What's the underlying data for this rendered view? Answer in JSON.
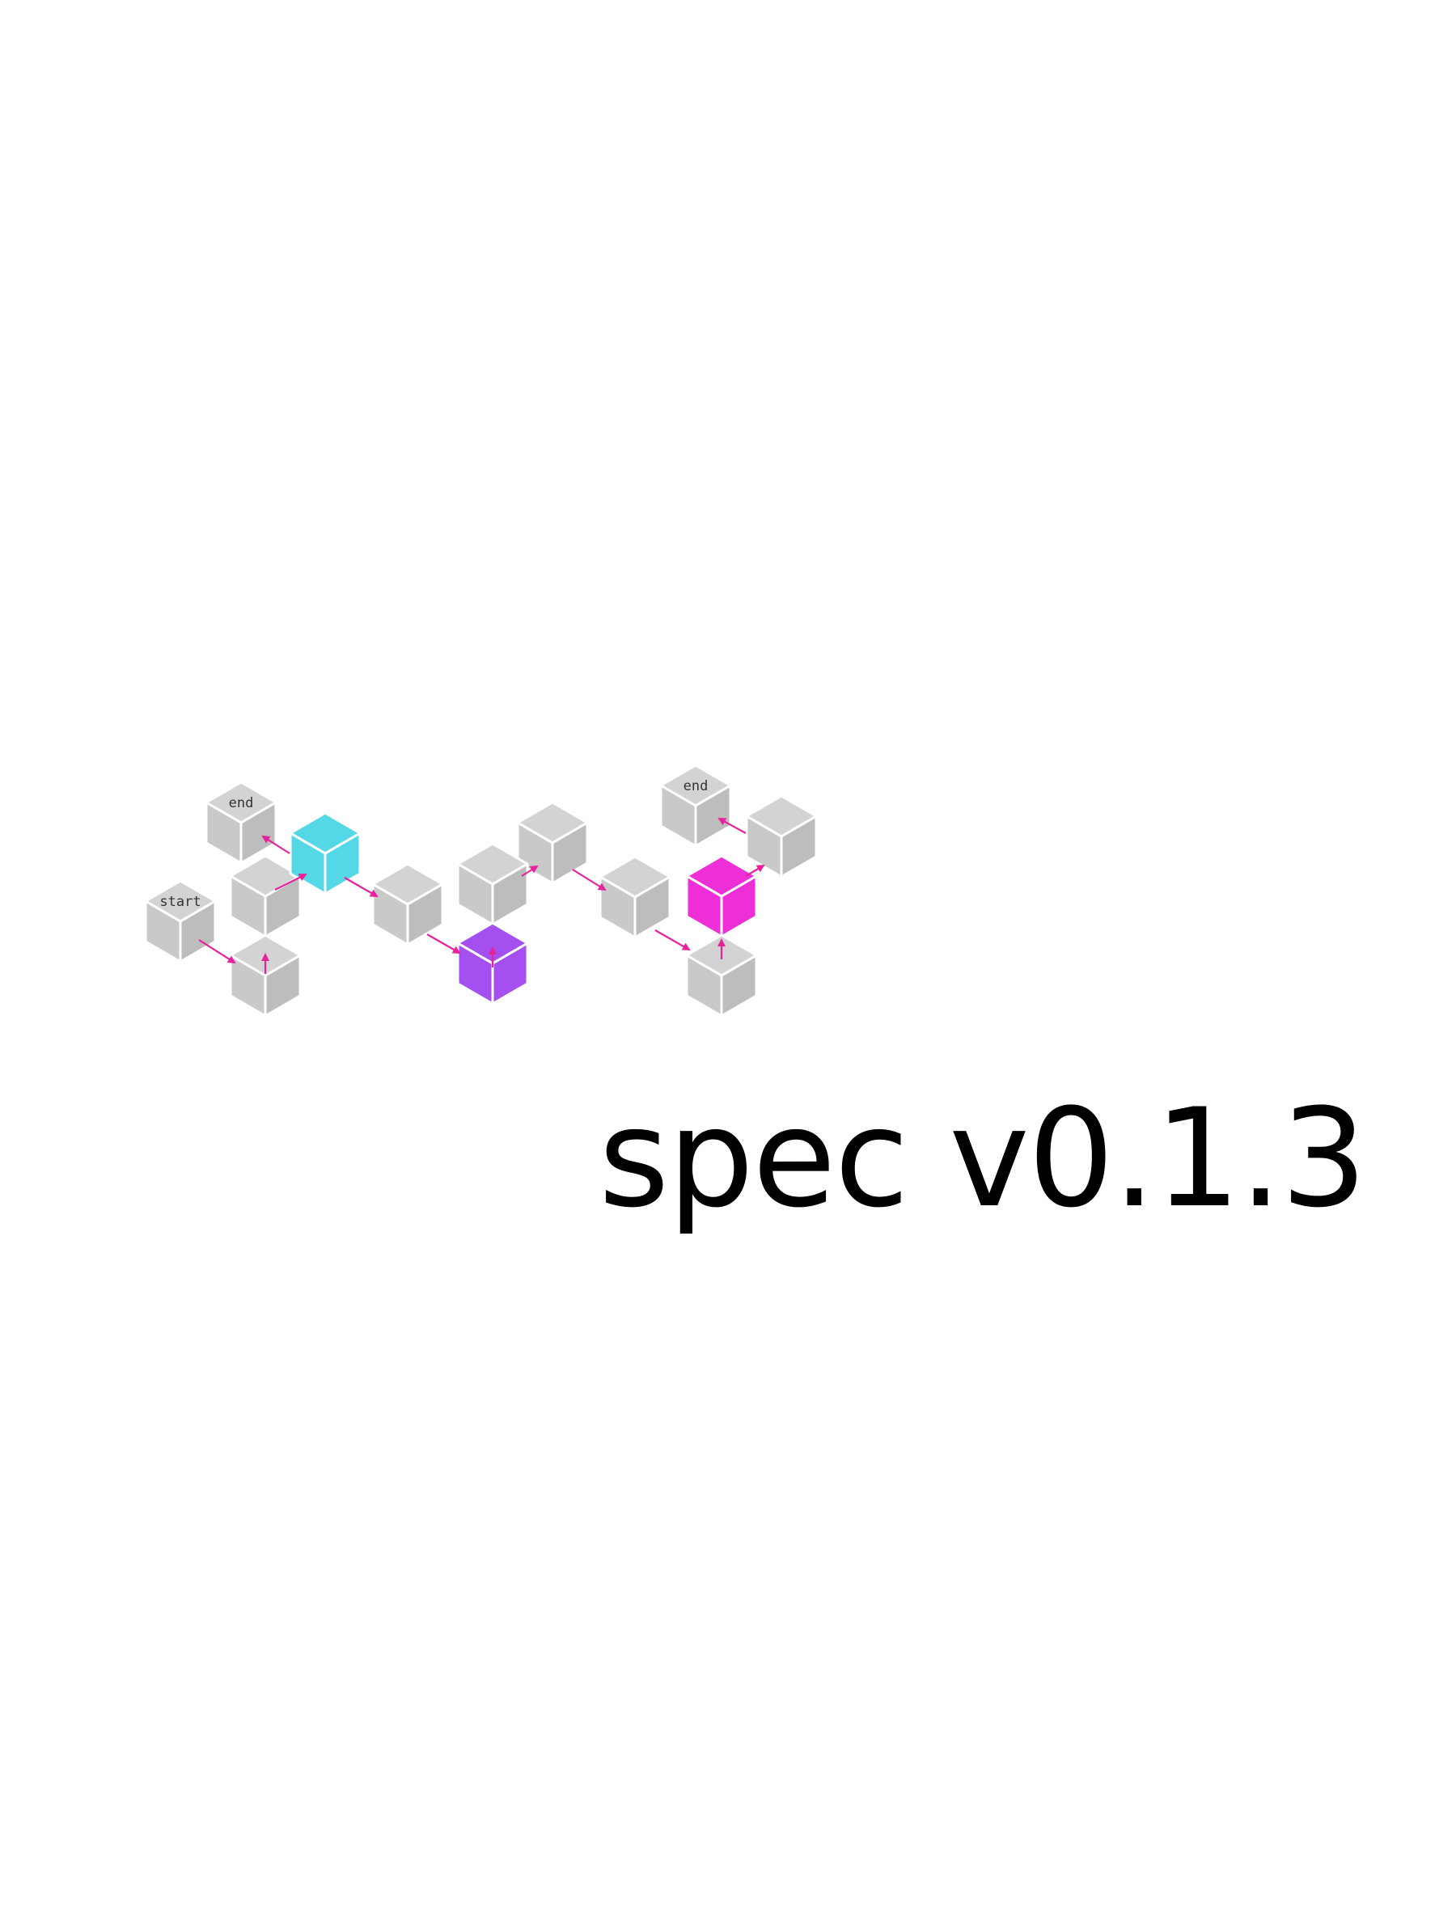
{
  "document": {
    "title": "spec v0.1.3"
  },
  "diagram": {
    "colors": {
      "cube_top": "#d3d3d3",
      "cube_left": "#c9c9c9",
      "cube_right": "#bdbdbd",
      "edge": "#ffffff",
      "arrow": "#e6239a",
      "cyan": "#55d8e6",
      "purple": "#a44ff0",
      "magenta": "#ee2fd8"
    },
    "cubes": [
      {
        "id": "start",
        "label": "start",
        "color": "gray"
      },
      {
        "id": "end-left",
        "label": "end",
        "color": "gray"
      },
      {
        "id": "end-right",
        "label": "end",
        "color": "gray"
      },
      {
        "id": "a",
        "label": "",
        "color": "gray"
      },
      {
        "id": "b",
        "label": "",
        "color": "gray"
      },
      {
        "id": "cyan-node",
        "label": "",
        "color": "cyan"
      },
      {
        "id": "c",
        "label": "",
        "color": "gray"
      },
      {
        "id": "purple-node",
        "label": "",
        "color": "purple"
      },
      {
        "id": "d",
        "label": "",
        "color": "gray"
      },
      {
        "id": "e",
        "label": "",
        "color": "gray"
      },
      {
        "id": "f",
        "label": "",
        "color": "gray"
      },
      {
        "id": "g",
        "label": "",
        "color": "gray"
      },
      {
        "id": "magenta-node",
        "label": "",
        "color": "magenta"
      },
      {
        "id": "h",
        "label": "",
        "color": "gray"
      }
    ]
  }
}
